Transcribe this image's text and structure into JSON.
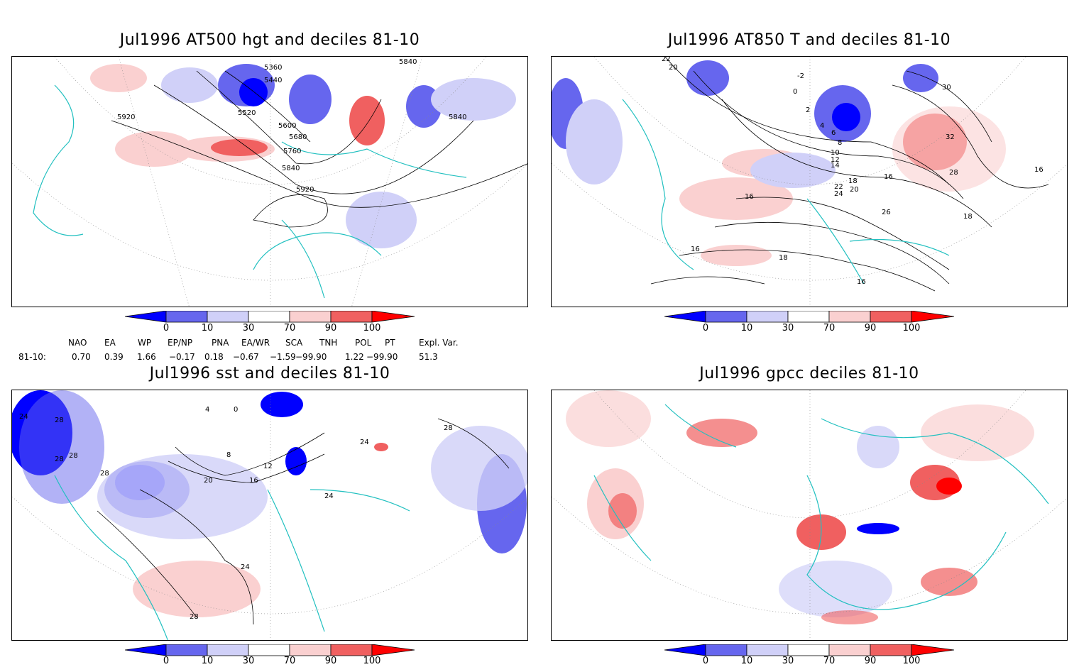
{
  "panels": [
    {
      "id": "hgt500",
      "title": "Jul1996 AT500 hgt and deciles 81-10",
      "contour_labels": [
        "5360",
        "5440",
        "5520",
        "5600",
        "5680",
        "5760",
        "5840",
        "5840",
        "5840",
        "5920",
        "5920"
      ]
    },
    {
      "id": "t850",
      "title": "Jul1996 AT850 T and deciles 81-10",
      "contour_labels": [
        "22",
        "20",
        "-2",
        "0",
        "2",
        "4",
        "6",
        "8",
        "10",
        "12",
        "14",
        "16",
        "18",
        "20",
        "22",
        "24",
        "26",
        "28",
        "30",
        "32",
        "16",
        "18",
        "16",
        "16",
        "18",
        "16"
      ]
    },
    {
      "id": "sst",
      "title": "Jul1996 sst and deciles 81-10",
      "contour_labels": [
        "24",
        "28",
        "28",
        "28",
        "28",
        "4",
        "0",
        "8",
        "12",
        "16",
        "20",
        "24",
        "24",
        "24",
        "28",
        "28"
      ]
    },
    {
      "id": "gpcc",
      "title": "Jul1996 gpcc deciles 81-10",
      "contour_labels": []
    }
  ],
  "colorbar": {
    "ticks": [
      "0",
      "10",
      "30",
      "70",
      "90",
      "100"
    ],
    "colors": {
      "deep_blue": "#0000ff",
      "mid_blue": "#6666ee",
      "light_blue": "#d0d0f8",
      "white": "#ffffff",
      "light_red": "#fad0d0",
      "mid_red": "#f06060",
      "deep_red": "#ff0000"
    }
  },
  "indices": {
    "headers": [
      "NAO",
      "EA",
      "WP",
      "EP/NP",
      "PNA",
      "EA/WR",
      "SCA",
      "TNH",
      "POL",
      "PT",
      "Expl. Var."
    ],
    "row_label": "81-10:",
    "values": [
      "0.70",
      "0.39",
      "1.66",
      "−0.17",
      "0.18",
      "−0.67",
      "−1.59",
      "−99.90",
      "1.22",
      "−99.90",
      "51.3"
    ]
  },
  "map_colors": {
    "coast": "#22c0c0",
    "grid": "#888888",
    "contour": "#000000"
  }
}
